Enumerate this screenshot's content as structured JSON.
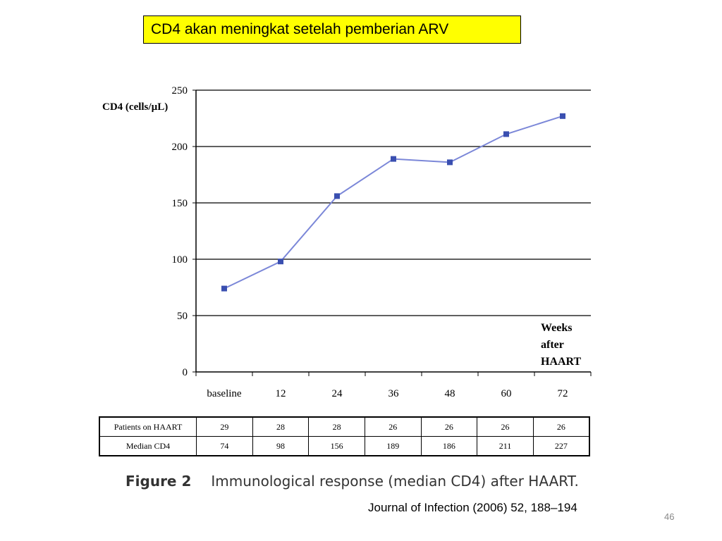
{
  "slide": {
    "title": "CD4 akan meningkat setelah pemberian ARV",
    "caption_label": "Figure 2",
    "caption_text": "Immunological response (median CD4) after HAART.",
    "source": "Journal of Infection (2006) 52, 188–194",
    "page_number": "46"
  },
  "chart_data": {
    "type": "line",
    "ylabel": "CD4 (cells/µL)",
    "xlabel_lines": [
      "Weeks",
      "after",
      "HAART"
    ],
    "categories": [
      "baseline",
      "12",
      "24",
      "36",
      "48",
      "60",
      "72"
    ],
    "series": [
      {
        "values": [
          74,
          98,
          156,
          189,
          186,
          211,
          227
        ]
      }
    ],
    "ylim": [
      0,
      250
    ],
    "yticks": [
      0,
      50,
      100,
      150,
      200,
      250
    ],
    "grid": true,
    "colors": {
      "line": "#7b87d8",
      "marker": "#3a4fb0",
      "grid": "#000000"
    }
  },
  "table": {
    "rows": [
      {
        "label": "Patients on HAART",
        "values": [
          "29",
          "28",
          "28",
          "26",
          "26",
          "26",
          "26"
        ]
      },
      {
        "label": "Median CD4",
        "values": [
          "74",
          "98",
          "156",
          "189",
          "186",
          "211",
          "227"
        ]
      }
    ]
  }
}
